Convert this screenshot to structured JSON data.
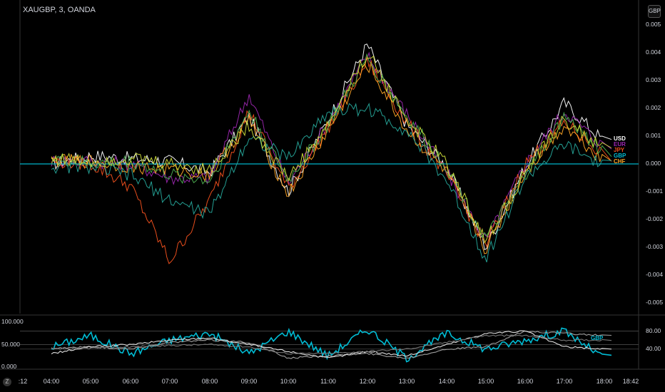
{
  "header": {
    "ticker": "XAUGBP, 3, OANDA",
    "currency_badge": "GBP",
    "z_badge": "Z"
  },
  "legend": [
    {
      "label": "USD",
      "color": "#ffffff"
    },
    {
      "label": "EUR",
      "color": "#9c27b0"
    },
    {
      "label": "JPY",
      "color": "#f4511e"
    },
    {
      "label": "GBP",
      "color": "#00bcd4"
    },
    {
      "label": "CHF",
      "color": "#ffa726"
    }
  ],
  "time_axis": [
    ":12",
    "04:00",
    "05:00",
    "06:00",
    "07:00",
    "08:00",
    "09:00",
    "10:00",
    "11:00",
    "12:00",
    "13:00",
    "14:00",
    "15:00",
    "16:00",
    "17:00",
    "18:00",
    "18:42"
  ],
  "main_axis": [
    "0.005",
    "0.004",
    "0.003",
    "0.002",
    "0.001",
    "0.000",
    "-0.001",
    "-0.002",
    "-0.003",
    "-0.004",
    "-0.005"
  ],
  "osc_left_axis": [
    "100.000",
    "50.000",
    "0.000"
  ],
  "osc_right_axis": [
    "80.00",
    "40.00"
  ],
  "osc_label": "GBP",
  "chart_data": [
    {
      "type": "line",
      "title": "XAUGBP, 3, OANDA",
      "ylim": [
        -0.005,
        0.005
      ],
      "y_unit": "GBP",
      "x": [
        "04:00",
        "05:00",
        "06:00",
        "07:00",
        "08:00",
        "09:00",
        "10:00",
        "11:00",
        "12:00",
        "13:00",
        "14:00",
        "15:00",
        "16:00",
        "17:00",
        "18:00"
      ],
      "series": [
        {
          "name": "USD",
          "color": "#ffffff",
          "values": [
            0.0,
            0.0003,
            0.0002,
            0.0001,
            -0.0003,
            0.0017,
            -0.001,
            0.0016,
            0.0043,
            0.0014,
            -0.0001,
            -0.003,
            -0.0001,
            0.0022,
            0.0008
          ]
        },
        {
          "name": "EUR",
          "color": "#9c27b0",
          "values": [
            0.0001,
            0.0001,
            0.0,
            -0.0005,
            -0.0005,
            0.0025,
            -0.0007,
            0.0015,
            0.0039,
            0.0018,
            -0.0003,
            -0.0028,
            0.0,
            0.0019,
            0.0006
          ]
        },
        {
          "name": "JPY",
          "color": "#f4511e",
          "values": [
            0.0001,
            0.0,
            -0.0008,
            -0.0035,
            -0.0013,
            0.0019,
            -0.0009,
            0.0013,
            0.0037,
            0.0015,
            -0.0004,
            -0.0029,
            0.0,
            0.0015,
            0.0003
          ]
        },
        {
          "name": "GBP",
          "color": "#00bcd4",
          "values": [
            0.0,
            0.0,
            0.0,
            0.0,
            0.0,
            0.0,
            0.0,
            0.0,
            0.0,
            0.0,
            0.0,
            0.0,
            0.0,
            0.0,
            0.0
          ]
        },
        {
          "name": "CHF",
          "color": "#ffa726",
          "values": [
            0.0001,
            0.0001,
            -0.0001,
            -0.0002,
            -0.0004,
            0.0016,
            -0.0011,
            0.0012,
            0.0036,
            0.0012,
            -0.0003,
            -0.0031,
            -0.0003,
            0.0014,
            0.0001
          ]
        },
        {
          "name": "",
          "color": "#4caf50",
          "values": [
            0.0002,
            0.0,
            0.0001,
            -0.0004,
            -0.0006,
            0.0019,
            -0.0006,
            0.0014,
            0.0038,
            0.0017,
            -0.0001,
            -0.0027,
            -0.0004,
            0.0017,
            0.0004
          ]
        },
        {
          "name": "",
          "color": "#26a69a",
          "values": [
            -0.0001,
            -0.0001,
            -0.0004,
            -0.0013,
            -0.0018,
            0.001,
            0.0002,
            0.0019,
            0.002,
            0.0012,
            -0.0006,
            -0.0034,
            -0.0005,
            0.0007,
            -0.0001
          ]
        },
        {
          "name": "",
          "color": "#cddc39",
          "values": [
            0.0002,
            0.0001,
            0.0002,
            0.0,
            -0.0002,
            0.0014,
            -0.0005,
            0.0014,
            0.004,
            0.0016,
            0.0,
            -0.0028,
            -0.0003,
            0.0016,
            0.0005
          ]
        }
      ]
    },
    {
      "type": "line",
      "title": "",
      "ylim": [
        0,
        100
      ],
      "x": [
        "04:00",
        "05:00",
        "06:00",
        "07:00",
        "08:00",
        "09:00",
        "10:00",
        "11:00",
        "12:00",
        "13:00",
        "14:00",
        "15:00",
        "16:00",
        "17:00",
        "18:00"
      ],
      "series": [
        {
          "name": "GBP",
          "color": "#00bcd4",
          "values": [
            45,
            70,
            30,
            60,
            75,
            30,
            80,
            25,
            85,
            20,
            75,
            40,
            60,
            80,
            20
          ]
        },
        {
          "name": "",
          "color": "#9e9e9e",
          "values": [
            42,
            45,
            40,
            55,
            60,
            55,
            20,
            25,
            30,
            20,
            40,
            45,
            80,
            75,
            70
          ]
        },
        {
          "name": "",
          "color": "#e0e0e0",
          "values": [
            30,
            45,
            50,
            60,
            65,
            50,
            35,
            20,
            35,
            25,
            50,
            75,
            80,
            45,
            40
          ]
        },
        {
          "name": "",
          "color": "#757575",
          "values": [
            40,
            42,
            45,
            48,
            50,
            45,
            30,
            30,
            35,
            40,
            55,
            70,
            70,
            60,
            60
          ]
        }
      ]
    }
  ]
}
